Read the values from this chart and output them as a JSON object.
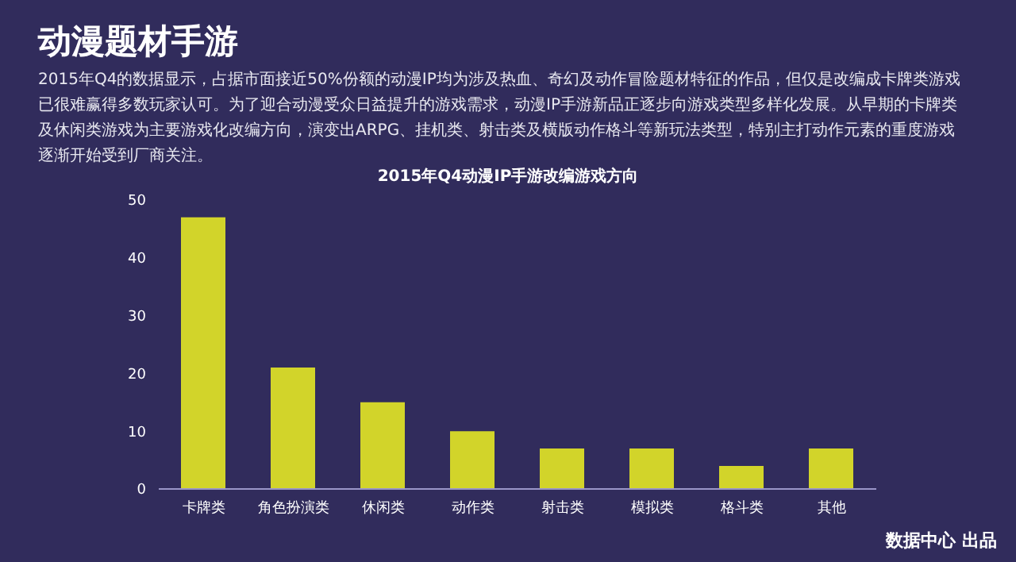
{
  "chart_data": {
    "type": "bar",
    "title": "动漫题材手游",
    "subtitle": "2015年Q4的数据显示，占据市面接近50%份额的动漫IP均为涉及热血、奇幻及动作冒险题材特征的作品，但仅是改编成卡牌类游戏已很难赢得多数玩家认可。为了迎合动漫受众日益提升的游戏需求，动漫IP手游新品正逐步向游戏类型多样化发展。从早期的卡牌类及休闲类游戏为主要游戏化改编方向，演变出ARPG、挂机类、射击类及横版动作格斗等新玩法类型，特别主打动作元素的重度游戏逐渐开始受到厂商关注。",
    "xlabel": "2015年Q4动漫IP手游改编游戏方向",
    "categories": [
      "卡牌类",
      "角色扮演类",
      "休闲类",
      "动作类",
      "射击类",
      "模拟类",
      "格斗类",
      "其他"
    ],
    "values": [
      47,
      21,
      15,
      10,
      7,
      7,
      4,
      7
    ],
    "color": "#d2d42a",
    "ylim": [
      0,
      50
    ],
    "yticks": [
      0,
      10,
      20,
      30,
      40,
      50
    ],
    "annotations": [
      "数据中心 出品"
    ]
  }
}
